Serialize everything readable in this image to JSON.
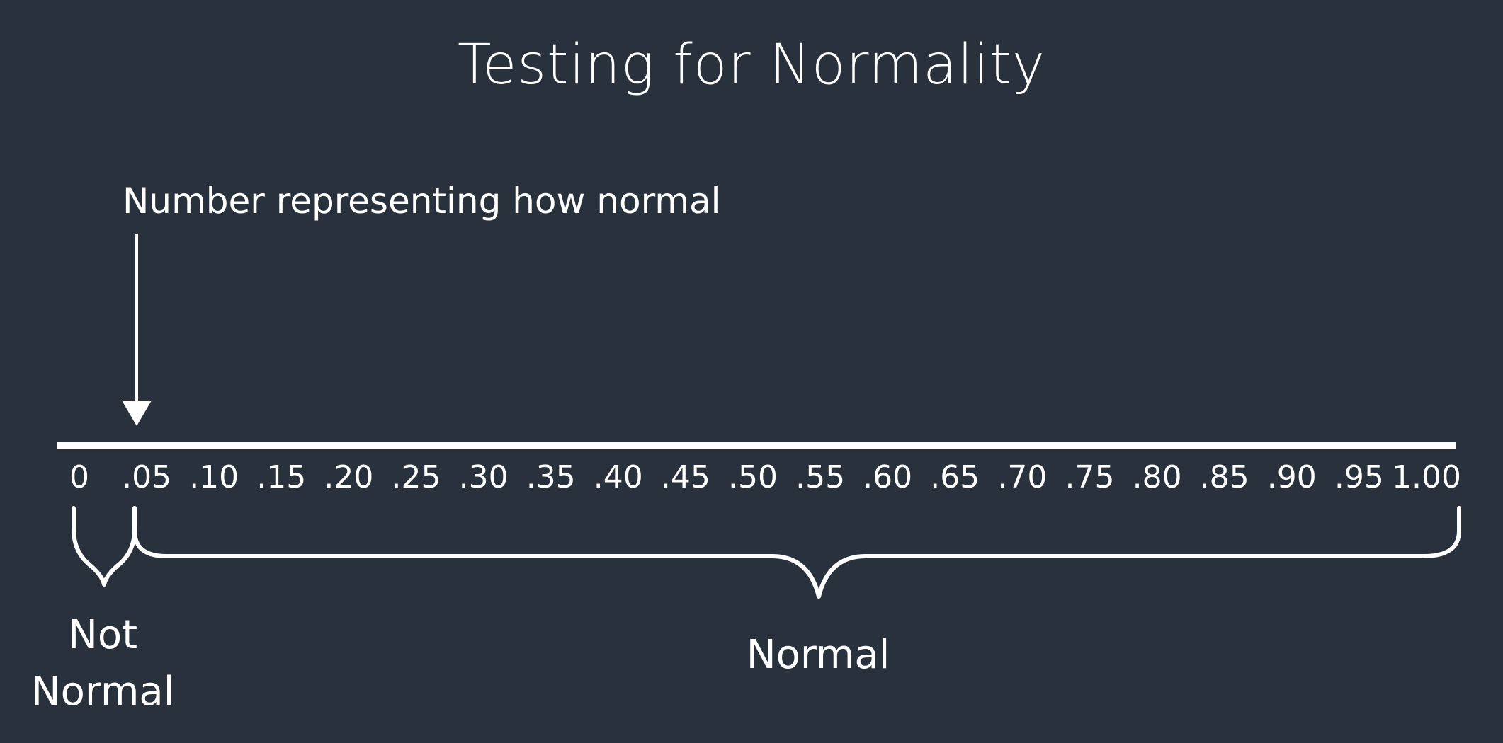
{
  "title": "Testing for Normality",
  "pointer_label": "Number representing how normal",
  "pointer_value": 0.05,
  "axis_ticks": [
    "0",
    ".05",
    ".10",
    ".15",
    ".20",
    ".25",
    ".30",
    ".35",
    ".40",
    ".45",
    ".50",
    ".55",
    ".60",
    ".65",
    ".70",
    ".75",
    ".80",
    ".85",
    ".90",
    ".95",
    "1.00"
  ],
  "regions": {
    "not_normal_label": "Not Normal",
    "normal_label": "Normal"
  },
  "colors": {
    "background": "#29323c",
    "foreground": "#ffffff"
  }
}
